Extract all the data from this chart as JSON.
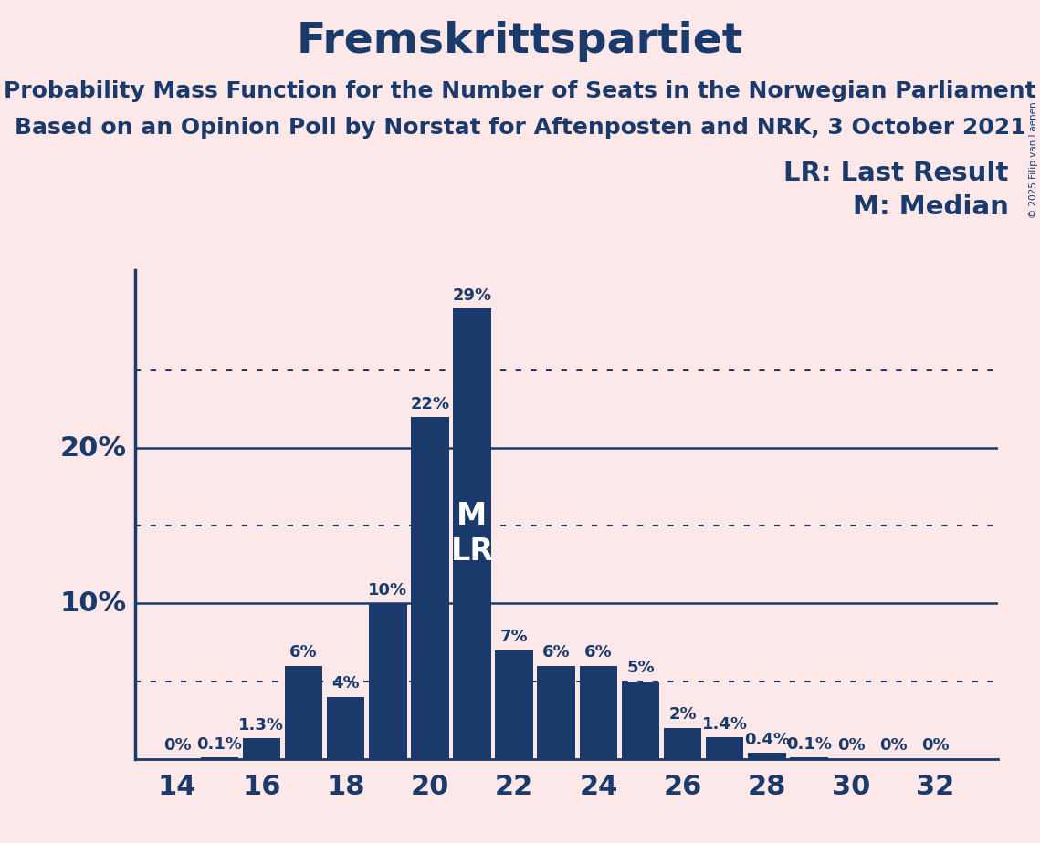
{
  "title": "Fremskrittspartiet",
  "subtitle1": "Probability Mass Function for the Number of Seats in the Norwegian Parliament",
  "subtitle2": "Based on an Opinion Poll by Norstat for Aftenposten and NRK, 3 October 2021",
  "copyright": "© 2025 Filip van Laenen",
  "legend_lr": "LR: Last Result",
  "legend_m": "M: Median",
  "seats": [
    14,
    15,
    16,
    17,
    18,
    19,
    20,
    21,
    22,
    23,
    24,
    25,
    26,
    27,
    28,
    29,
    30,
    31,
    32
  ],
  "probabilities": [
    0.0,
    0.1,
    1.3,
    6.0,
    4.0,
    10.0,
    22.0,
    29.0,
    7.0,
    6.0,
    6.0,
    5.0,
    2.0,
    1.4,
    0.4,
    0.1,
    0.0,
    0.0,
    0.0
  ],
  "labels": [
    "0%",
    "0.1%",
    "1.3%",
    "6%",
    "4%",
    "10%",
    "22%",
    "29%",
    "7%",
    "6%",
    "6%",
    "5%",
    "2%",
    "1.4%",
    "0.4%",
    "0.1%",
    "0%",
    "0%",
    "0%"
  ],
  "bar_color": "#1a3a6b",
  "background_color": "#fce8e8",
  "text_color": "#1a3a6b",
  "grid_color_solid": "#1a3a6b",
  "grid_color_dotted": "#1a3a6b",
  "solid_grid_vals": [
    10.0,
    20.0
  ],
  "dotted_grid_vals": [
    5.0,
    15.0,
    25.0
  ],
  "xlim": [
    13.0,
    33.5
  ],
  "ylim": [
    0,
    31.5
  ],
  "xtick_positions": [
    14,
    16,
    18,
    20,
    22,
    24,
    26,
    28,
    30,
    32
  ],
  "ytick_labels": [
    "10%",
    "20%"
  ],
  "ytick_positions": [
    10.0,
    20.0
  ],
  "median_seat": 21,
  "lr_seat": 21,
  "label_fontsize": 13,
  "title_fontsize": 34,
  "subtitle_fontsize": 18,
  "axis_fontsize": 22,
  "annotation_fontsize": 21,
  "ml_label_fontsize": 24,
  "bar_width": 0.9
}
